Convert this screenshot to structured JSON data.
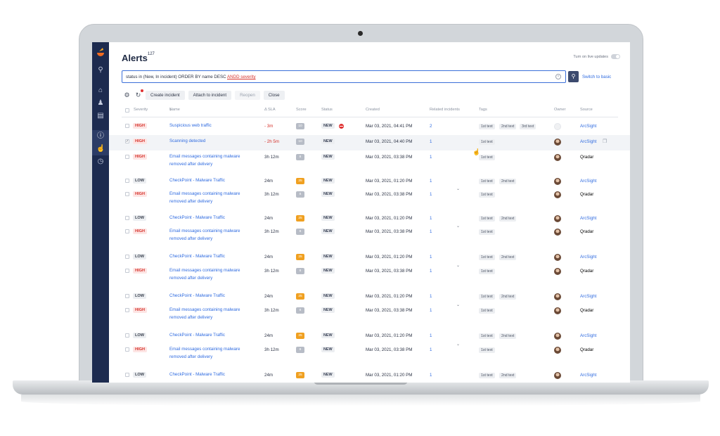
{
  "app": {
    "title": "Alerts",
    "count": "127",
    "live_updates_label": "Turn on live updates"
  },
  "search": {
    "query_prefix": "status in (New, In incident) ORDER BY name DESC",
    "query_op": "ANDD severity",
    "switch_label": "Switch to basic"
  },
  "toolbar": {
    "create_label": "Create incident",
    "attach_label": "Attach to incident",
    "reopen_label": "Reopen",
    "close_label": "Close"
  },
  "columns": {
    "severity": "Severity",
    "name": "Name",
    "sla": "Δ SLA",
    "score": "Score",
    "status": "Status",
    "created": "Created",
    "related": "Related incidents",
    "tags": "Tags",
    "owner": "Owner",
    "source": "Source"
  },
  "colors": {
    "sidebar": "#1d2b4f",
    "accent": "#2f6be0",
    "high": "#d6322b",
    "score_gray": "#b7bcc6",
    "score_orange": "#f0a020"
  },
  "rows": [
    {
      "severity": "HIGH",
      "name": "Suspicious web traffic",
      "sla": "- 3m",
      "score": "10",
      "status": "NEW",
      "created": "Mar 03, 2021, 04:41 PM",
      "related": "2",
      "tags": [
        "1st text",
        "2nd text",
        "3rd text"
      ],
      "owner": "",
      "source": "ArcSight"
    },
    {
      "severity": "HIGH",
      "name": "Scanning detected",
      "sla": "- 2h 5m",
      "score": "10",
      "status": "NEW",
      "created": "Mar 03, 2021, 04:40 PM",
      "related": "1",
      "tags": [
        "1st text"
      ],
      "owner": "avatar",
      "source": "ArcSight"
    },
    {
      "severity": "HIGH",
      "name": "Email messages containing malware removed after delivery",
      "sla": "3h 12m",
      "score": "8",
      "status": "NEW",
      "created": "Mar 03, 2021, 03:38 PM",
      "related": "1",
      "tags": [
        "1st text"
      ],
      "owner": "avatar",
      "source": "Qradar"
    },
    {
      "severity": "LOW",
      "name": "CheckPoint - Malware Traffic",
      "sla": "24m",
      "score": "25",
      "status": "NEW",
      "created": "Mar 03, 2021, 01:20 PM",
      "related": "1",
      "tags": [
        "1st text",
        "2nd text"
      ],
      "owner": "avatar",
      "source": "ArcSight"
    },
    {
      "severity": "HIGH",
      "name": "Email messages containing malware removed after delivery",
      "sla": "3h 12m",
      "score": "8",
      "status": "NEW",
      "created": "Mar 03, 2021, 03:38 PM",
      "related": "1",
      "tags": [
        "1st text"
      ],
      "owner": "avatar",
      "source": "Qradar"
    },
    {
      "severity": "LOW",
      "name": "CheckPoint - Malware Traffic",
      "sla": "24m",
      "score": "25",
      "status": "NEW",
      "created": "Mar 03, 2021, 01:20 PM",
      "related": "1",
      "tags": [
        "1st text",
        "2nd text"
      ],
      "owner": "avatar",
      "source": "ArcSight"
    },
    {
      "severity": "HIGH",
      "name": "Email messages containing malware removed after delivery",
      "sla": "3h 12m",
      "score": "8",
      "status": "NEW",
      "created": "Mar 03, 2021, 03:38 PM",
      "related": "1",
      "tags": [
        "1st text"
      ],
      "owner": "avatar",
      "source": "Qradar"
    },
    {
      "severity": "LOW",
      "name": "CheckPoint - Malware Traffic",
      "sla": "24m",
      "score": "25",
      "status": "NEW",
      "created": "Mar 03, 2021, 01:20 PM",
      "related": "1",
      "tags": [
        "1st text",
        "2nd text"
      ],
      "owner": "avatar",
      "source": "ArcSight"
    },
    {
      "severity": "HIGH",
      "name": "Email messages containing malware removed after delivery",
      "sla": "3h 12m",
      "score": "8",
      "status": "NEW",
      "created": "Mar 03, 2021, 03:38 PM",
      "related": "1",
      "tags": [
        "1st text"
      ],
      "owner": "avatar",
      "source": "Qradar"
    },
    {
      "severity": "LOW",
      "name": "CheckPoint - Malware Traffic",
      "sla": "24m",
      "score": "25",
      "status": "NEW",
      "created": "Mar 03, 2021, 01:20 PM",
      "related": "1",
      "tags": [
        "1st text",
        "2nd text"
      ],
      "owner": "avatar",
      "source": "ArcSight"
    },
    {
      "severity": "HIGH",
      "name": "Email messages containing malware removed after delivery",
      "sla": "3h 12m",
      "score": "8",
      "status": "NEW",
      "created": "Mar 03, 2021, 03:38 PM",
      "related": "1",
      "tags": [
        "1st text"
      ],
      "owner": "avatar",
      "source": "Qradar"
    },
    {
      "severity": "LOW",
      "name": "CheckPoint - Malware Traffic",
      "sla": "24m",
      "score": "25",
      "status": "NEW",
      "created": "Mar 03, 2021, 01:20 PM",
      "related": "1",
      "tags": [
        "1st text",
        "2nd text"
      ],
      "owner": "avatar",
      "source": "ArcSight"
    },
    {
      "severity": "HIGH",
      "name": "Email messages containing malware removed after delivery",
      "sla": "3h 12m",
      "score": "8",
      "status": "NEW",
      "created": "Mar 03, 2021, 03:38 PM",
      "related": "1",
      "tags": [
        "1st text"
      ],
      "owner": "avatar",
      "source": "Qradar"
    },
    {
      "severity": "LOW",
      "name": "CheckPoint - Malware Traffic",
      "sla": "24m",
      "score": "25",
      "status": "NEW",
      "created": "Mar 03, 2021, 01:20 PM",
      "related": "1",
      "tags": [
        "1st text",
        "2nd text"
      ],
      "owner": "avatar",
      "source": "ArcSight"
    }
  ]
}
